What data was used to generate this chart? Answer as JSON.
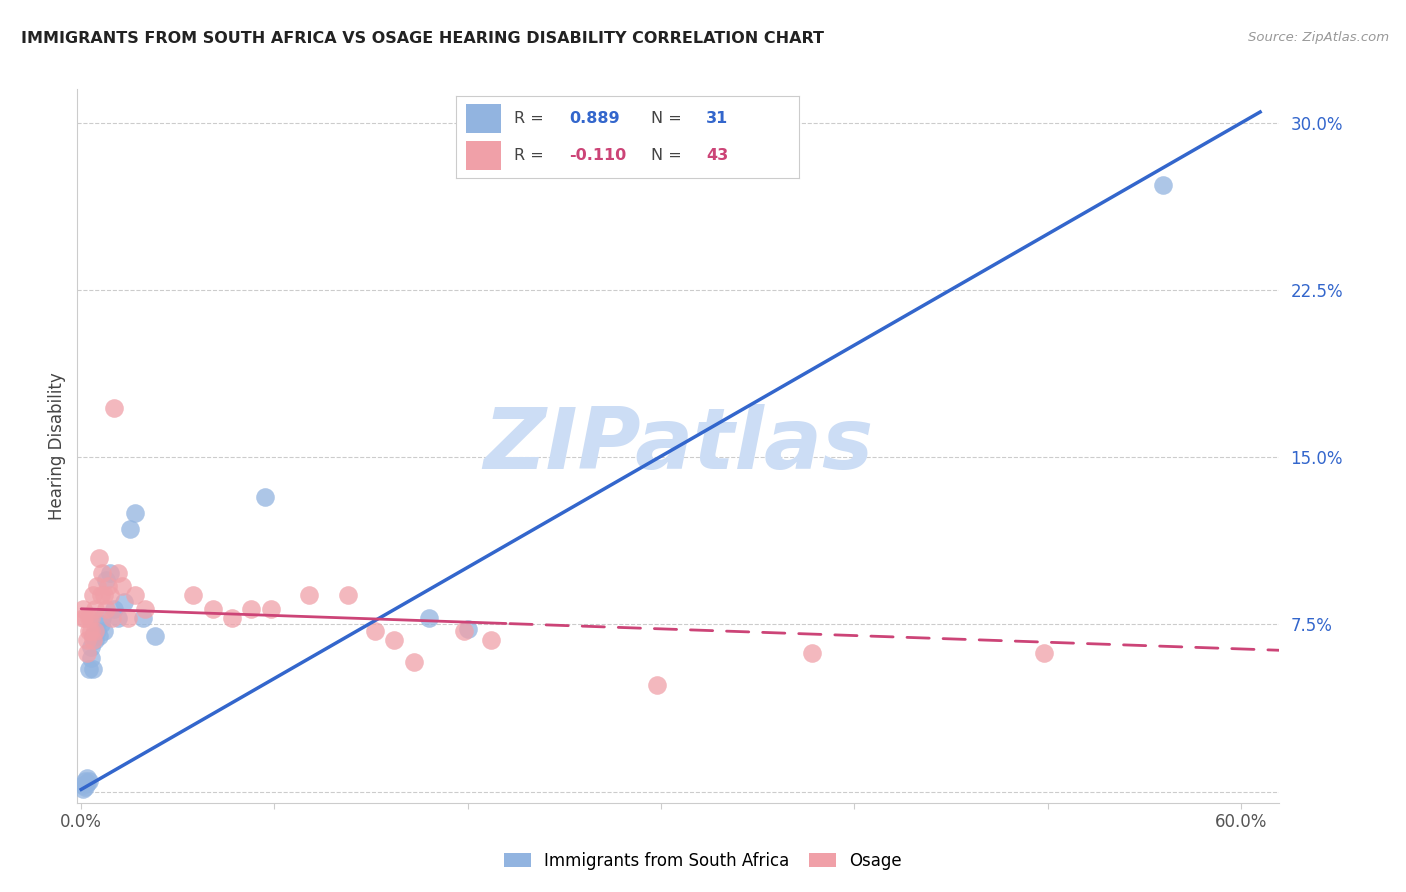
{
  "title": "IMMIGRANTS FROM SOUTH AFRICA VS OSAGE HEARING DISABILITY CORRELATION CHART",
  "source": "Source: ZipAtlas.com",
  "ylabel": "Hearing Disability",
  "xlim": [
    -0.002,
    0.62
  ],
  "ylim": [
    -0.005,
    0.315
  ],
  "yticks": [
    0.0,
    0.075,
    0.15,
    0.225,
    0.3
  ],
  "ytick_labels": [
    "",
    "7.5%",
    "15.0%",
    "22.5%",
    "30.0%"
  ],
  "xtick_positions": [
    0.0,
    0.1,
    0.2,
    0.3,
    0.4,
    0.5,
    0.6
  ],
  "xtick_labels": [
    "0.0%",
    "",
    "",
    "",
    "",
    "",
    "60.0%"
  ],
  "blue_R": "0.889",
  "blue_N": "31",
  "pink_R": "-0.110",
  "pink_N": "43",
  "blue_scatter_color": "#92b4e0",
  "pink_scatter_color": "#f0a0a8",
  "blue_line_color": "#3366cc",
  "pink_line_color": "#cc4477",
  "watermark_color": "#ccddf5",
  "blue_legend_label": "Immigrants from South Africa",
  "pink_legend_label": "Osage",
  "blue_line_intercept": 0.001,
  "blue_line_slope": 0.498,
  "pink_line_intercept": 0.082,
  "pink_line_slope": -0.03,
  "blue_scatter_x": [
    0.001,
    0.001,
    0.002,
    0.002,
    0.003,
    0.003,
    0.004,
    0.004,
    0.005,
    0.005,
    0.006,
    0.006,
    0.007,
    0.008,
    0.009,
    0.01,
    0.011,
    0.012,
    0.013,
    0.015,
    0.017,
    0.019,
    0.022,
    0.025,
    0.028,
    0.032,
    0.038,
    0.095,
    0.18,
    0.2,
    0.56
  ],
  "blue_scatter_y": [
    0.001,
    0.003,
    0.002,
    0.005,
    0.004,
    0.006,
    0.005,
    0.055,
    0.06,
    0.065,
    0.055,
    0.07,
    0.068,
    0.072,
    0.07,
    0.075,
    0.078,
    0.072,
    0.095,
    0.098,
    0.082,
    0.078,
    0.085,
    0.118,
    0.125,
    0.078,
    0.07,
    0.132,
    0.078,
    0.073,
    0.272
  ],
  "pink_scatter_x": [
    0.001,
    0.001,
    0.002,
    0.003,
    0.003,
    0.004,
    0.004,
    0.005,
    0.005,
    0.006,
    0.006,
    0.007,
    0.007,
    0.008,
    0.009,
    0.01,
    0.011,
    0.012,
    0.013,
    0.014,
    0.015,
    0.016,
    0.017,
    0.019,
    0.021,
    0.024,
    0.028,
    0.033,
    0.058,
    0.068,
    0.078,
    0.088,
    0.098,
    0.118,
    0.138,
    0.152,
    0.162,
    0.172,
    0.198,
    0.212,
    0.298,
    0.378,
    0.498
  ],
  "pink_scatter_y": [
    0.078,
    0.082,
    0.078,
    0.068,
    0.062,
    0.078,
    0.072,
    0.072,
    0.078,
    0.088,
    0.068,
    0.072,
    0.082,
    0.092,
    0.105,
    0.088,
    0.098,
    0.088,
    0.082,
    0.092,
    0.088,
    0.078,
    0.172,
    0.098,
    0.092,
    0.078,
    0.088,
    0.082,
    0.088,
    0.082,
    0.078,
    0.082,
    0.082,
    0.088,
    0.088,
    0.072,
    0.068,
    0.058,
    0.072,
    0.068,
    0.048,
    0.062,
    0.062
  ]
}
